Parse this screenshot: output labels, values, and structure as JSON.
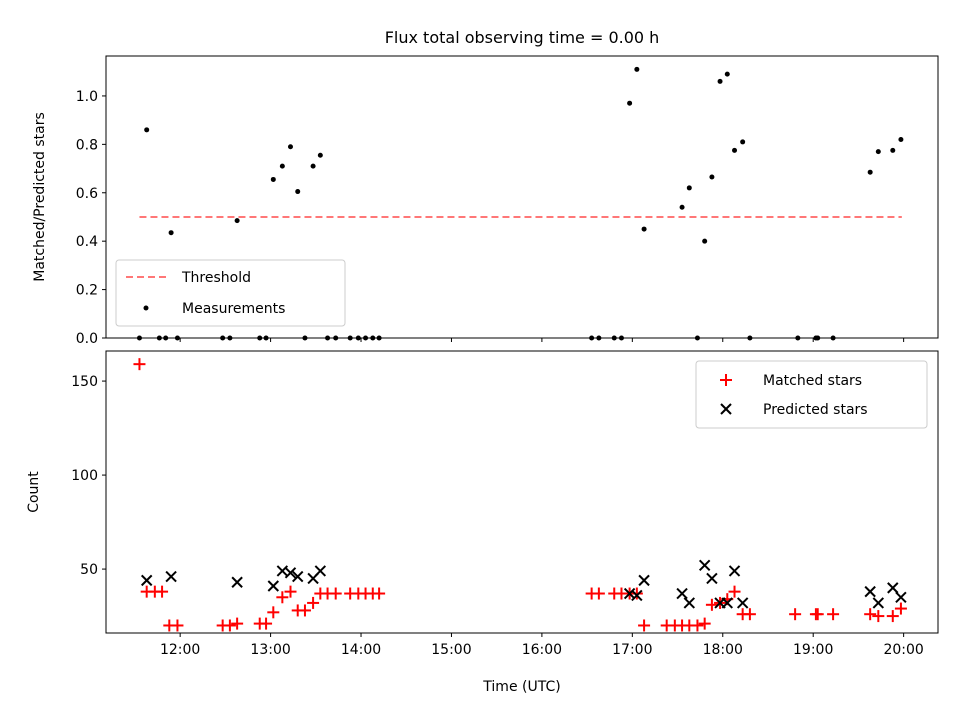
{
  "chart_data": [
    {
      "type": "scatter",
      "title": "Flux total observing time = 0.00 h",
      "xlabel": "",
      "ylabel": "Matched/Predicted stars",
      "xlim": [
        11.18,
        20.38
      ],
      "ylim": [
        0,
        1.165
      ],
      "yticks": [
        0.0,
        0.2,
        0.4,
        0.6,
        0.8,
        1.0
      ],
      "ytick_labels": [
        "0.0",
        "0.2",
        "0.4",
        "0.6",
        "0.8",
        "1.0"
      ],
      "legend_position": "lower left",
      "threshold": {
        "name": "Threshold",
        "y": 0.5,
        "x": [
          11.55,
          19.98
        ],
        "color": "#ff7777",
        "style": "dashed"
      },
      "series": [
        {
          "name": "Measurements",
          "color": "#000000",
          "marker": "dot",
          "x": [
            11.55,
            11.63,
            11.77,
            11.84,
            11.9,
            11.97,
            12.47,
            12.55,
            12.63,
            12.88,
            12.95,
            13.03,
            13.13,
            13.22,
            13.3,
            13.38,
            13.47,
            13.55,
            13.63,
            13.72,
            13.88,
            13.97,
            14.05,
            14.13,
            14.2,
            16.55,
            16.63,
            16.8,
            16.88,
            16.97,
            17.05,
            17.13,
            17.55,
            17.63,
            17.72,
            17.8,
            17.88,
            17.97,
            18.05,
            18.13,
            18.22,
            18.3,
            18.83,
            19.03,
            19.05,
            19.22,
            19.63,
            19.72,
            19.88,
            19.97
          ],
          "y": [
            0.0,
            0.86,
            0.0,
            0.0,
            0.435,
            0.0,
            0.0,
            0.0,
            0.485,
            0.0,
            0.0,
            0.655,
            0.71,
            0.79,
            0.605,
            0.0,
            0.71,
            0.755,
            0.0,
            0.0,
            0.0,
            0.0,
            0.0,
            0.0,
            0.0,
            0.0,
            0.0,
            0.0,
            0.0,
            0.97,
            1.11,
            0.45,
            0.54,
            0.62,
            0.0,
            0.4,
            0.665,
            1.06,
            1.09,
            0.775,
            0.81,
            0.0,
            0.0,
            0.0,
            0.0,
            0.0,
            0.685,
            0.77,
            0.775,
            0.82
          ]
        }
      ]
    },
    {
      "type": "scatter",
      "title": "",
      "xlabel": "Time (UTC)",
      "ylabel": "Count",
      "xlim": [
        11.18,
        20.38
      ],
      "ylim": [
        16,
        166
      ],
      "yticks": [
        50,
        100,
        150
      ],
      "ytick_labels": [
        "50",
        "100",
        "150"
      ],
      "xticks": [
        12,
        13,
        14,
        15,
        16,
        17,
        18,
        19,
        20
      ],
      "xtick_labels": [
        "12:00",
        "13:00",
        "14:00",
        "15:00",
        "16:00",
        "17:00",
        "18:00",
        "19:00",
        "20:00"
      ],
      "legend_position": "upper right",
      "series": [
        {
          "name": "Matched stars",
          "color": "#ff0000",
          "marker": "plus",
          "x": [
            11.55,
            11.63,
            11.72,
            11.8,
            11.88,
            11.97,
            12.47,
            12.55,
            12.63,
            12.88,
            12.95,
            13.03,
            13.13,
            13.22,
            13.3,
            13.38,
            13.47,
            13.55,
            13.63,
            13.72,
            13.88,
            13.97,
            14.05,
            14.13,
            14.2,
            16.55,
            16.63,
            16.8,
            16.88,
            16.97,
            17.05,
            17.13,
            17.38,
            17.47,
            17.55,
            17.63,
            17.72,
            17.8,
            17.88,
            17.97,
            18.05,
            18.13,
            18.22,
            18.3,
            18.8,
            19.03,
            19.05,
            19.22,
            19.63,
            19.72,
            19.88,
            19.97
          ],
          "y": [
            159,
            38,
            38,
            38,
            20,
            20,
            20,
            20,
            21,
            21,
            21,
            27,
            35,
            38,
            28,
            28,
            32,
            37,
            37,
            37,
            37,
            37,
            37,
            37,
            37,
            37,
            37,
            37,
            37,
            37,
            37,
            20,
            20,
            20,
            20,
            20,
            20,
            21,
            31,
            32,
            34,
            38,
            26,
            26,
            26,
            26,
            26,
            26,
            26,
            25,
            25,
            29
          ]
        },
        {
          "name": "Predicted stars",
          "color": "#000000",
          "marker": "x",
          "x": [
            11.63,
            11.9,
            12.63,
            13.03,
            13.13,
            13.22,
            13.3,
            13.47,
            13.55,
            16.97,
            17.05,
            17.13,
            17.55,
            17.63,
            17.8,
            17.88,
            17.97,
            18.05,
            18.13,
            18.22,
            19.63,
            19.72,
            19.88,
            19.97
          ],
          "y": [
            44,
            46,
            43,
            41,
            49,
            48,
            46,
            45,
            49,
            37,
            36,
            44,
            37,
            32,
            52,
            45,
            32,
            32,
            49,
            32,
            38,
            32,
            40,
            35
          ]
        }
      ]
    }
  ]
}
